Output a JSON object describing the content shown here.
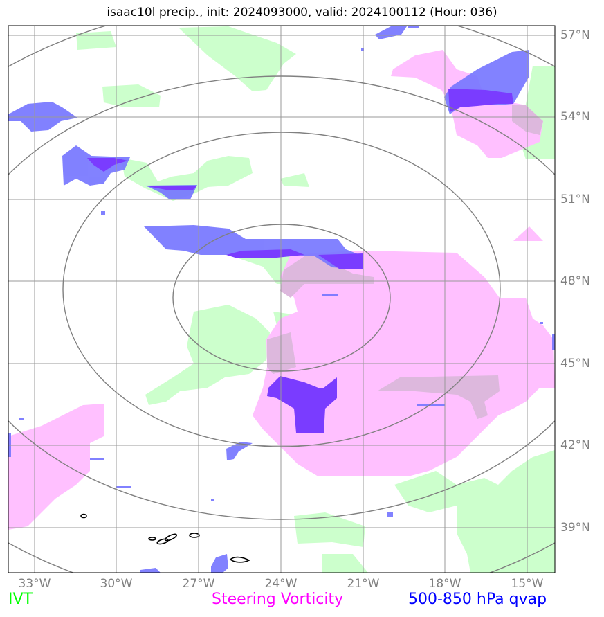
{
  "title": "isaac10l precip., init: 2024093000, valid: 2024100112 (Hour: 036)",
  "lon_labels": [
    "33°W",
    "30°W",
    "27°W",
    "24°W",
    "21°W",
    "18°W",
    "15°W"
  ],
  "lat_labels": [
    "57°N",
    "54°N",
    "51°N",
    "48°N",
    "45°N",
    "42°N",
    "39°N"
  ],
  "legend": [
    {
      "label": "IVT",
      "color": "#00ff00"
    },
    {
      "label": "Steering Vorticity",
      "color": "#ff00ff"
    },
    {
      "label": "500-850 hPa qvap",
      "color": "#0000ff"
    }
  ],
  "colors": {
    "ivt_fill": "#ccffcc",
    "vorticity_fill": "#ffc0ff",
    "qvap_fill": "#7777ff",
    "qvap_strong": "#7a3cff",
    "overlap": "#ddb8dd",
    "grid": "#999999",
    "range_rings": "#808080"
  }
}
